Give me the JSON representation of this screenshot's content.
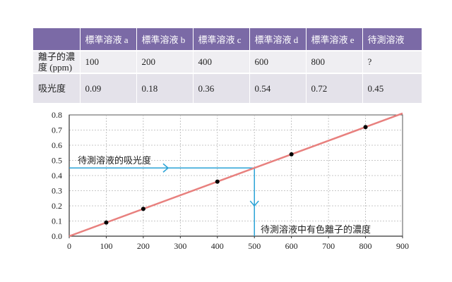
{
  "table": {
    "headers": [
      "",
      "標準溶液 a",
      "標準溶液 b",
      "標準溶液 c",
      "標準溶液 d",
      "標準溶液 e",
      "待測溶液"
    ],
    "rows": [
      {
        "label": "離子的濃度 (ppm)",
        "cells": [
          "100",
          "200",
          "400",
          "600",
          "800",
          "?"
        ]
      },
      {
        "label": "吸光度",
        "cells": [
          "0.09",
          "0.18",
          "0.36",
          "0.54",
          "0.72",
          "0.45"
        ]
      }
    ]
  },
  "chart_data": {
    "type": "scatter",
    "x": [
      100,
      200,
      400,
      600,
      800
    ],
    "y": [
      0.09,
      0.18,
      0.36,
      0.54,
      0.72
    ],
    "fit_line": {
      "x": [
        0,
        900
      ],
      "y": [
        0,
        0.81
      ],
      "color": "#e8807e"
    },
    "xlim": [
      0,
      900
    ],
    "ylim": [
      0,
      0.8
    ],
    "xticks": [
      0,
      100,
      200,
      300,
      400,
      500,
      600,
      700,
      800,
      900
    ],
    "yticks": [
      0.0,
      0.1,
      0.2,
      0.3,
      0.4,
      0.5,
      0.6,
      0.7,
      0.8
    ],
    "xtick_labels": [
      "0",
      "100",
      "200",
      "300",
      "400",
      "500",
      "600",
      "700",
      "800",
      "900"
    ],
    "ytick_labels": [
      "0.0",
      "0.1",
      "0.2",
      "0.3",
      "0.4",
      "0.5",
      "0.6",
      "0.7",
      "0.8"
    ],
    "grid": true,
    "unknown": {
      "absorbance": 0.45,
      "concentration": 500,
      "color": "#2aa3d6"
    },
    "annotations": {
      "absorbance_label": "待測溶液的吸光度",
      "concentration_label": "待測溶液中有色離子的濃度"
    }
  }
}
